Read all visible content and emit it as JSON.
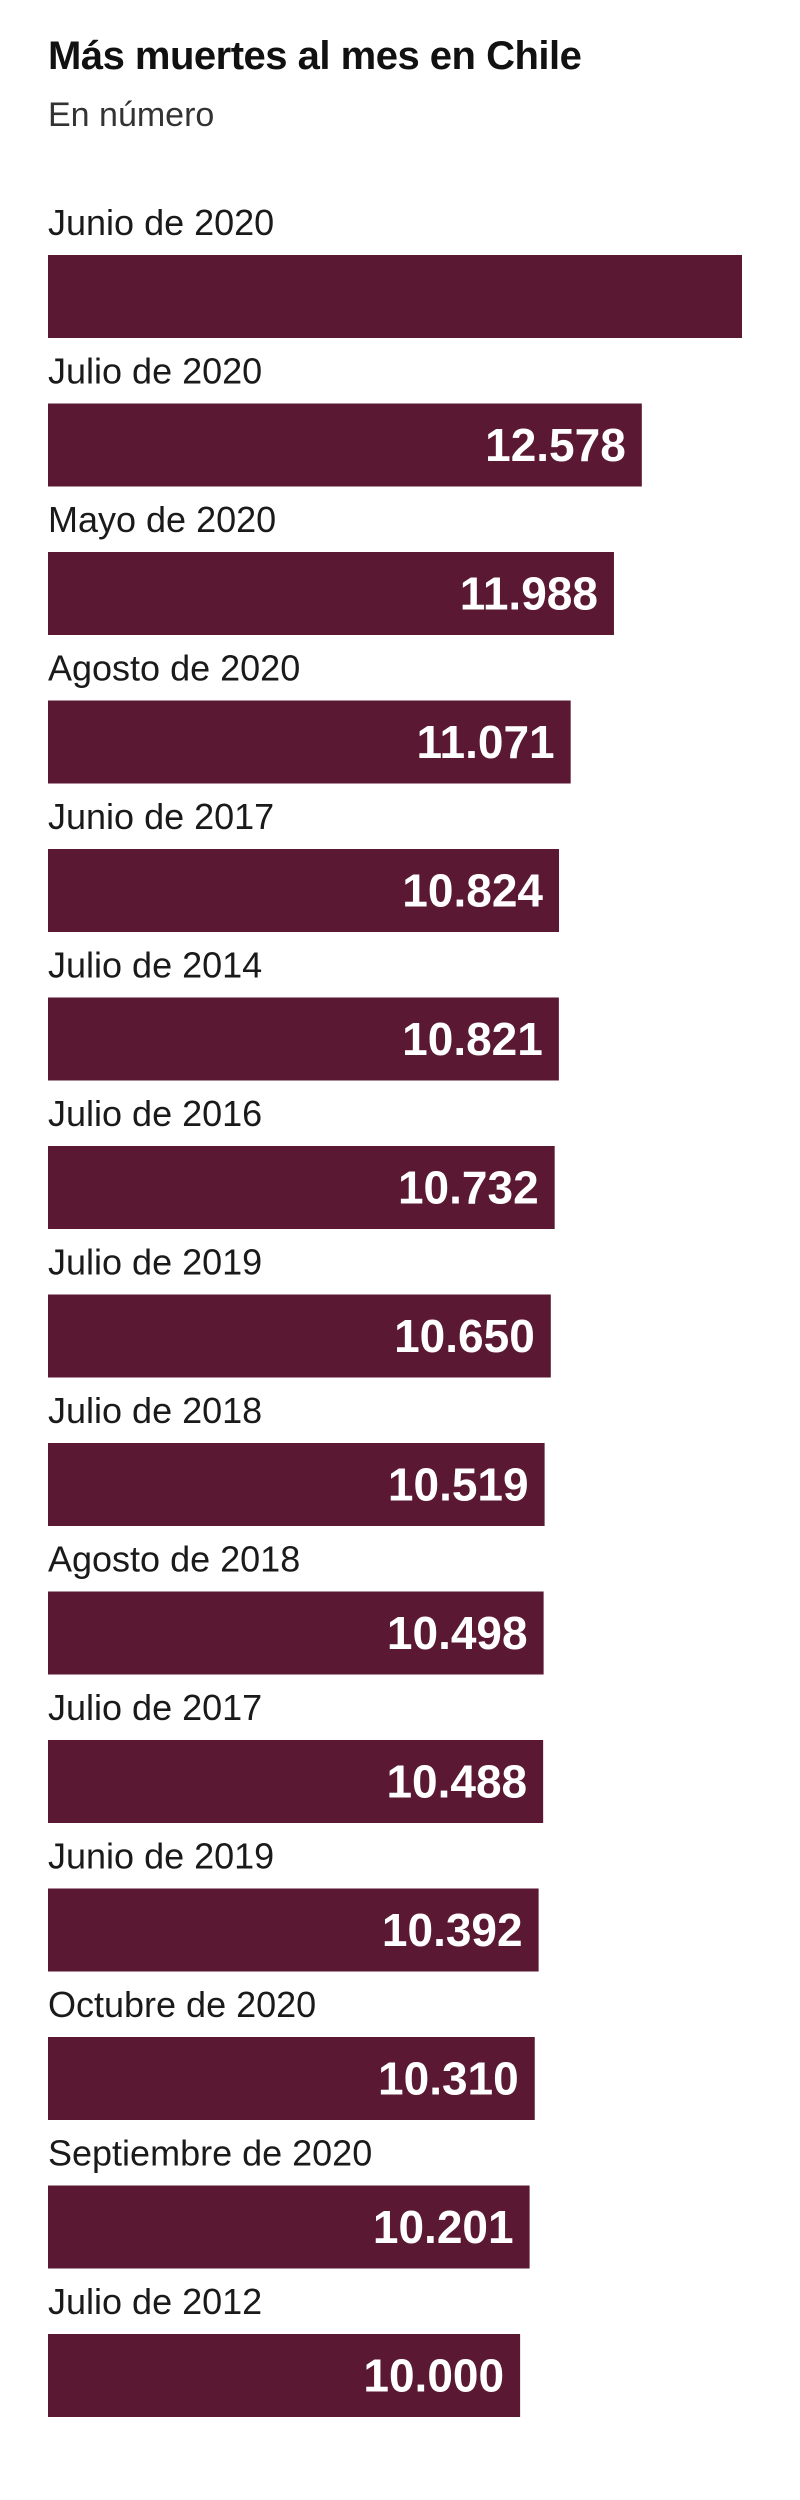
{
  "header": {
    "title": "Más muertes al mes en Chile",
    "subtitle": "En número"
  },
  "colors": {
    "bar": "#5a1832",
    "value_text": "#ffffff"
  },
  "chart_data": {
    "type": "bar",
    "orientation": "horizontal",
    "title": "Más muertes al mes en Chile",
    "subtitle": "En número",
    "categories": [
      "Junio de 2020",
      "Julio de 2020",
      "Mayo de 2020",
      "Agosto de 2020",
      "Junio de 2017",
      "Julio de 2014",
      "Julio de 2016",
      "Julio de 2019",
      "Julio de 2018",
      "Agosto de 2018",
      "Julio de 2017",
      "Junio de 2019",
      "Octubre de 2020",
      "Septiembre de 2020",
      "Julio de 2012"
    ],
    "values": [
      14700,
      12578,
      11988,
      11071,
      10824,
      10821,
      10732,
      10650,
      10519,
      10498,
      10488,
      10392,
      10310,
      10201,
      10000
    ],
    "value_labels": [
      "",
      "12.578",
      "11.988",
      "11.071",
      "10.824",
      "10.821",
      "10.732",
      "10.650",
      "10.519",
      "10.498",
      "10.488",
      "10.392",
      "10.310",
      "10.201",
      "10.000"
    ],
    "xlim": [
      0,
      14700
    ],
    "grid": false,
    "legend": "none"
  }
}
